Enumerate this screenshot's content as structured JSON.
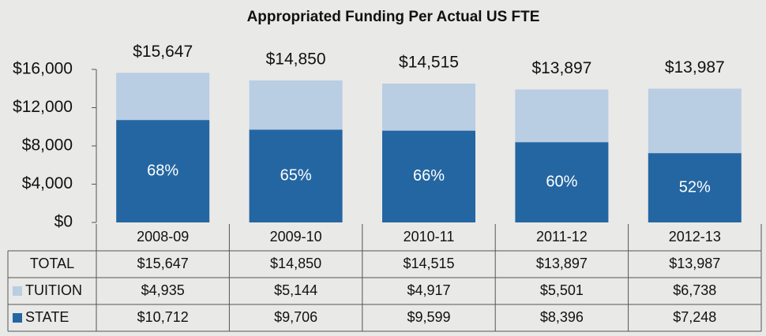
{
  "chart_data": {
    "type": "bar",
    "stacked": true,
    "title": "Appropriated Funding Per Actual US FTE",
    "categories": [
      "2008-09",
      "2009-10",
      "2010-11",
      "2011-12",
      "2012-13"
    ],
    "series": [
      {
        "name": "STATE",
        "color": "#2466a2",
        "values": [
          10712,
          9706,
          9599,
          8396,
          7248
        ],
        "value_labels": [
          "$10,712",
          "$9,706",
          "$9,599",
          "$8,396",
          "$7,248"
        ]
      },
      {
        "name": "TUITION",
        "color": "#b9cde3",
        "values": [
          4935,
          5144,
          4917,
          5501,
          6738
        ],
        "value_labels": [
          "$4,935",
          "$5,144",
          "$4,917",
          "$5,501",
          "$6,738"
        ]
      }
    ],
    "totals": {
      "name": "TOTAL",
      "values": [
        15647,
        14850,
        14515,
        13897,
        13987
      ],
      "value_labels": [
        "$15,647",
        "$14,850",
        "$14,515",
        "$13,897",
        "$13,987"
      ]
    },
    "state_shares": {
      "values": [
        68,
        65,
        66,
        60,
        52
      ],
      "value_labels": [
        "68%",
        "65%",
        "66%",
        "60%",
        "52%"
      ]
    },
    "ylim": [
      0,
      16000
    ],
    "yticks": [
      {
        "value": 0,
        "label": "$0"
      },
      {
        "value": 4000,
        "label": "$4,000"
      },
      {
        "value": 8000,
        "label": "$8,000"
      },
      {
        "value": 12000,
        "label": "$12,000"
      },
      {
        "value": 16000,
        "label": "$16,000"
      }
    ]
  }
}
